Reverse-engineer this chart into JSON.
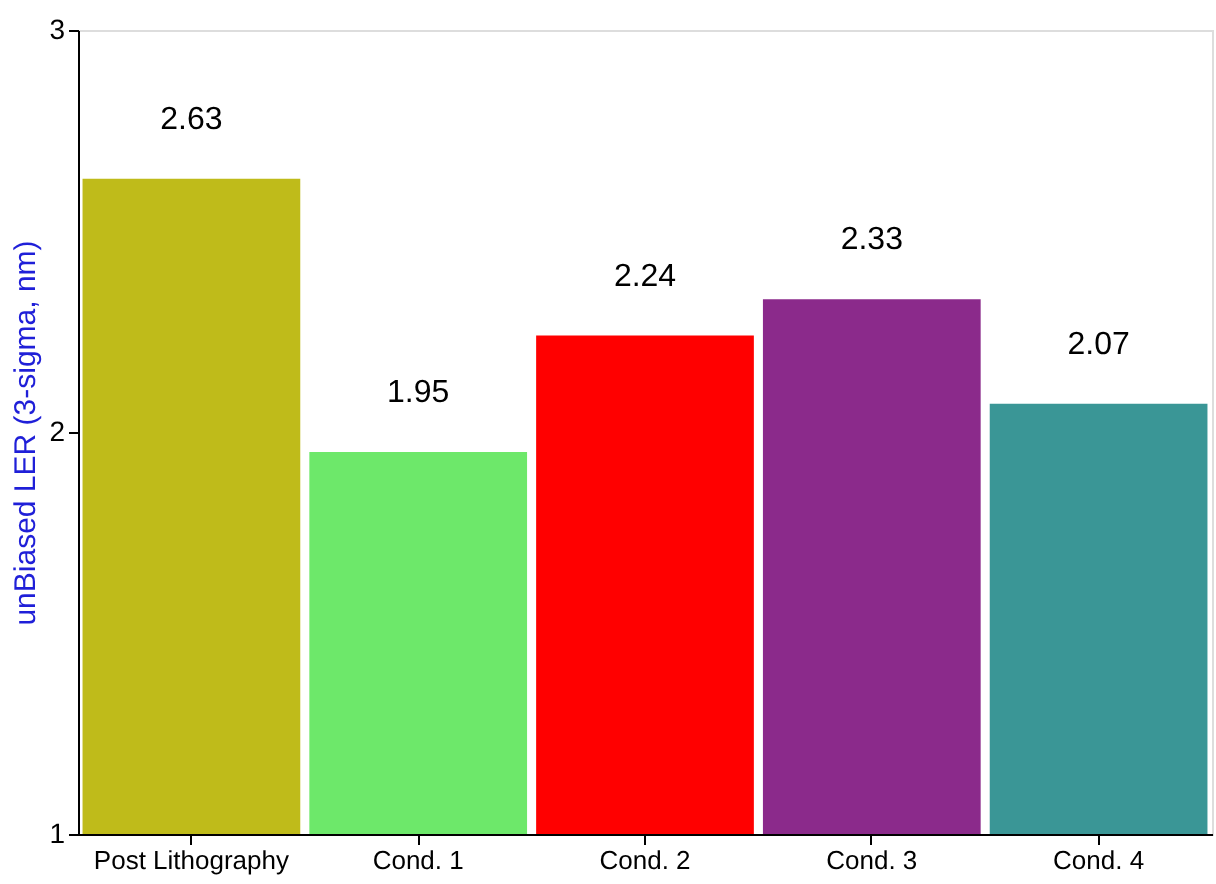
{
  "chart_data": {
    "type": "bar",
    "ylabel": "unBiased LER (3-sigma, nm)",
    "categories": [
      "Post Lithography",
      "Cond. 1",
      "Cond. 2",
      "Cond. 3",
      "Cond. 4"
    ],
    "values": [
      2.63,
      1.95,
      2.24,
      2.33,
      2.07
    ],
    "colors": [
      "#bfbb1a",
      "#6de86a",
      "#ff0000",
      "#8b2a8b",
      "#3a9696"
    ],
    "ylim": [
      1,
      3
    ],
    "yticks": [
      1,
      2,
      3
    ],
    "grid": false,
    "data_labels": true
  }
}
